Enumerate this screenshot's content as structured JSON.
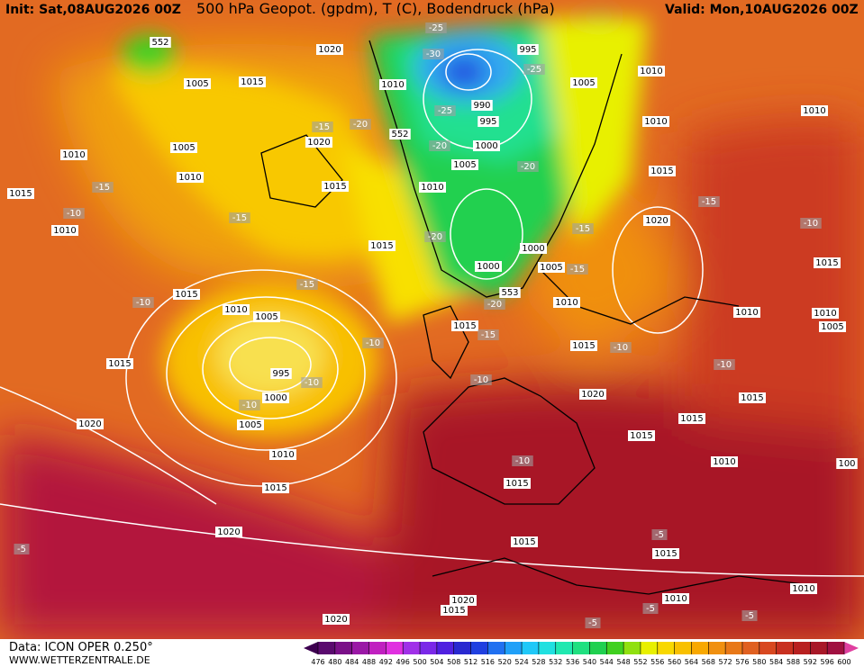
{
  "header": {
    "init": "Init: Sat,08AUG2026 00Z",
    "title": "500 hPa Geopot. (gpdm), T (C), Bodendruck (hPa)",
    "valid": "Valid: Mon,10AUG2026 00Z"
  },
  "footer": {
    "source": "Data: ICON OPER 0.250°",
    "website": "WWW.WETTERZENTRALE.DE"
  },
  "colorbar": {
    "ticks": [
      476,
      480,
      484,
      488,
      492,
      496,
      500,
      504,
      508,
      512,
      516,
      520,
      524,
      528,
      532,
      536,
      540,
      544,
      548,
      552,
      556,
      560,
      564,
      568,
      572,
      576,
      580,
      584,
      588,
      592,
      596,
      600
    ],
    "colors": [
      "#3d0050",
      "#5a0a6e",
      "#7a1088",
      "#9a18a6",
      "#c020c0",
      "#e030e0",
      "#a030e8",
      "#7a28e8",
      "#5020e0",
      "#2828d0",
      "#2040e0",
      "#2070f0",
      "#20a0f8",
      "#20c8f8",
      "#20e0e0",
      "#20e8b0",
      "#20e080",
      "#20d050",
      "#40d020",
      "#90e010",
      "#e8f000",
      "#f8d800",
      "#f8c000",
      "#f8a800",
      "#f09010",
      "#e87818",
      "#e06020",
      "#d84820",
      "#c83020",
      "#b82020",
      "#a81828",
      "#a01040",
      "#e040a0"
    ]
  },
  "map_labels": [
    "552",
    "1020",
    "1005",
    "1015",
    "1010",
    "995",
    "-25",
    "-30",
    "-25",
    "1005",
    "990",
    "995",
    "-25",
    "1010",
    "1010",
    "1010",
    "-20",
    "-15",
    "1020",
    "552",
    "-20",
    "1000",
    "1005",
    "1010",
    "1005",
    "-20",
    "1010",
    "1015",
    "1015",
    "1010",
    "-15",
    "1015",
    "-15",
    "-10",
    "-15",
    "1020",
    "-10",
    "1010",
    "-20",
    "-15",
    "1015",
    "1000",
    "1000",
    "1005",
    "-15",
    "1015",
    "1015",
    "-15",
    "553",
    "-10",
    "-20",
    "1010",
    "1010",
    "1005",
    "1010",
    "1010",
    "1005",
    "1015",
    "-15",
    "-10",
    "1015",
    "-10",
    "1015",
    "995",
    "-10",
    "-10",
    "-10",
    "1000",
    "1020",
    "1015",
    "-10",
    "1015",
    "1005",
    "1020",
    "1015",
    "1010",
    "-10",
    "1010",
    "1015",
    "1015",
    "100",
    "1020",
    "1015",
    "-5",
    "1015",
    "-5",
    "1010",
    "1010",
    "1020",
    "1015",
    "-5",
    "1020",
    "-5",
    "-5"
  ]
}
